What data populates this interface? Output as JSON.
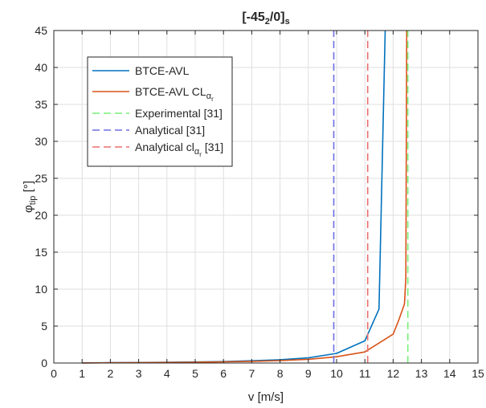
{
  "chart_data": {
    "type": "line",
    "title": {
      "prefix": "[-45",
      "sub": "2",
      "mid": "/0]",
      "sub2": "s"
    },
    "xlabel": "v [m/s]",
    "ylabel": {
      "main": "φ",
      "sub": "tip",
      "unit": " [°]"
    },
    "xlim": [
      0,
      15
    ],
    "ylim": [
      0,
      45
    ],
    "xticks": [
      0,
      1,
      2,
      3,
      4,
      5,
      6,
      7,
      8,
      9,
      10,
      11,
      12,
      13,
      14,
      15
    ],
    "yticks": [
      0,
      5,
      10,
      15,
      20,
      25,
      30,
      35,
      40,
      45
    ],
    "grid": true,
    "legend_position": "top-left",
    "series": [
      {
        "name": "BTCE-AVL",
        "color": "#0072BD",
        "style": "solid",
        "x": [
          1,
          2,
          3,
          4,
          5,
          6,
          7,
          8,
          9,
          10,
          11,
          11.5,
          11.72
        ],
        "y": [
          0.02,
          0.04,
          0.07,
          0.1,
          0.14,
          0.2,
          0.3,
          0.45,
          0.7,
          1.3,
          3.0,
          7.3,
          45
        ]
      },
      {
        "name_parts": {
          "main": "BTCE-AVL CL",
          "sub": "α",
          "subsub": "r"
        },
        "color": "#D95319",
        "style": "solid",
        "x": [
          1,
          2,
          3,
          4,
          5,
          6,
          7,
          8,
          9,
          10,
          11,
          12,
          12.2,
          12.4,
          12.45,
          12.48
        ],
        "y": [
          0.01,
          0.03,
          0.05,
          0.08,
          0.11,
          0.16,
          0.23,
          0.33,
          0.5,
          0.85,
          1.5,
          3.9,
          5.8,
          8.0,
          11.5,
          45
        ]
      },
      {
        "name": "Experimental [31]",
        "color": "#77F077",
        "style": "dashed",
        "x": [
          12.52,
          12.52
        ],
        "y": [
          0,
          45
        ]
      },
      {
        "name": "Analytical [31]",
        "color": "#6E6EE6",
        "style": "dashed",
        "x": [
          9.9,
          9.9
        ],
        "y": [
          0,
          45
        ]
      },
      {
        "name_parts": {
          "main": "Analytical cl",
          "sub": "α",
          "subsub": "r",
          "suffix": " [31]"
        },
        "color": "#EB6E6E",
        "style": "dashed",
        "x": [
          11.1,
          11.1
        ],
        "y": [
          0,
          45
        ]
      }
    ]
  }
}
